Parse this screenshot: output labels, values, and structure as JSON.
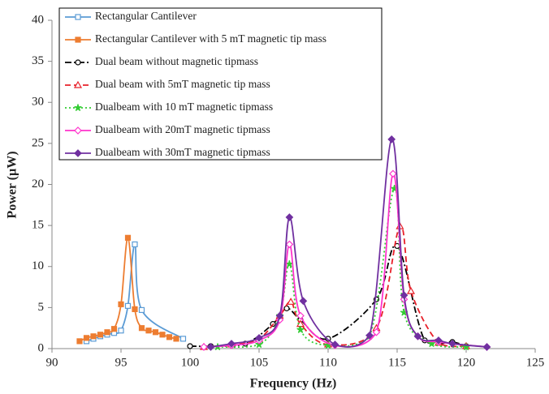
{
  "chart_data": {
    "type": "line",
    "x_label": "Frequency (Hz)",
    "y_label": "Power (µW)",
    "xlim": [
      90,
      125
    ],
    "xticks": [
      90,
      95,
      100,
      105,
      110,
      115,
      120,
      125
    ],
    "ylim": [
      0,
      40
    ],
    "yticks": [
      0,
      5,
      10,
      15,
      20,
      25,
      30,
      35,
      40
    ],
    "legend": "top-left",
    "series": [
      {
        "name": "Rectangular Cantilever",
        "color": "#5b9bd5",
        "marker": "square",
        "filled": false,
        "dash": "solid",
        "x": [
          92.5,
          93,
          93.5,
          94,
          94.5,
          95,
          95.5,
          96,
          96.5,
          99.5
        ],
        "values": [
          0.9,
          1.2,
          1.5,
          1.7,
          1.9,
          2.2,
          5.2,
          12.7,
          4.7,
          1.2
        ]
      },
      {
        "name": "Rectangular Cantilever with 5 mT magnetic tip mass",
        "color": "#ed7d31",
        "marker": "square",
        "filled": true,
        "dash": "solid",
        "x": [
          92,
          92.5,
          93,
          93.5,
          94,
          94.5,
          95,
          95.5,
          96,
          96.5,
          97,
          97.5,
          98,
          98.5,
          99
        ],
        "values": [
          0.9,
          1.3,
          1.5,
          1.7,
          2.0,
          2.4,
          5.4,
          13.5,
          4.8,
          2.5,
          2.2,
          2.0,
          1.7,
          1.4,
          1.2
        ]
      },
      {
        "name": "Dual beam without magnetic tipmass",
        "color": "#000000",
        "marker": "circle",
        "filled": false,
        "dash": "dashdot",
        "x": [
          100,
          101.5,
          104,
          106,
          107,
          108,
          110,
          113.5,
          115,
          117,
          119,
          120
        ],
        "values": [
          0.3,
          0.3,
          0.6,
          3.0,
          4.9,
          3.5,
          1.2,
          6.0,
          12.5,
          1.0,
          0.8,
          0.3
        ]
      },
      {
        "name": "Dual beam with 5mT magnetic tip mass",
        "color": "#e8202a",
        "marker": "triangle",
        "filled": false,
        "dash": "dash",
        "x": [
          101,
          103,
          105,
          106.5,
          107.3,
          108,
          110,
          113.5,
          115.2,
          116,
          118,
          120
        ],
        "values": [
          0.2,
          0.5,
          1.2,
          4.0,
          5.7,
          3.0,
          0.5,
          2.5,
          14.9,
          7.0,
          0.7,
          0.3
        ]
      },
      {
        "name": "Dualbeam with 10 mT magnetic tipmass",
        "color": "#33cc33",
        "marker": "star",
        "filled": true,
        "dash": "dot",
        "x": [
          102,
          105,
          106.5,
          107.2,
          108,
          110,
          113,
          114.8,
          115.5,
          117.5,
          120
        ],
        "values": [
          0.2,
          0.5,
          4.0,
          10.3,
          2.3,
          0.4,
          1.5,
          19.5,
          4.4,
          0.6,
          0.2
        ]
      },
      {
        "name": "Dualbeam with 20mT magnetic tipmass",
        "color": "#ff33cc",
        "marker": "diamond",
        "filled": false,
        "dash": "solid",
        "x": [
          101,
          103,
          105,
          106.5,
          107.2,
          108,
          110.5,
          113.5,
          114.7,
          115.5,
          116.5,
          118,
          121.5
        ],
        "values": [
          0.2,
          0.4,
          1.0,
          3.5,
          12.7,
          4.0,
          0.4,
          2.0,
          21.3,
          6.0,
          1.5,
          0.8,
          0.2
        ]
      },
      {
        "name": "Dualbeam with 30mT magnetic tipmass",
        "color": "#7030a0",
        "marker": "diamond",
        "filled": true,
        "dash": "solid",
        "x": [
          101.5,
          103,
          105,
          106.5,
          107.2,
          108.2,
          110.5,
          113,
          114.6,
          115.5,
          116.5,
          118,
          119,
          121.5
        ],
        "values": [
          0.2,
          0.6,
          1.3,
          4.0,
          16.0,
          5.8,
          0.5,
          1.6,
          25.5,
          6.5,
          1.5,
          1.0,
          0.6,
          0.2
        ]
      }
    ]
  }
}
